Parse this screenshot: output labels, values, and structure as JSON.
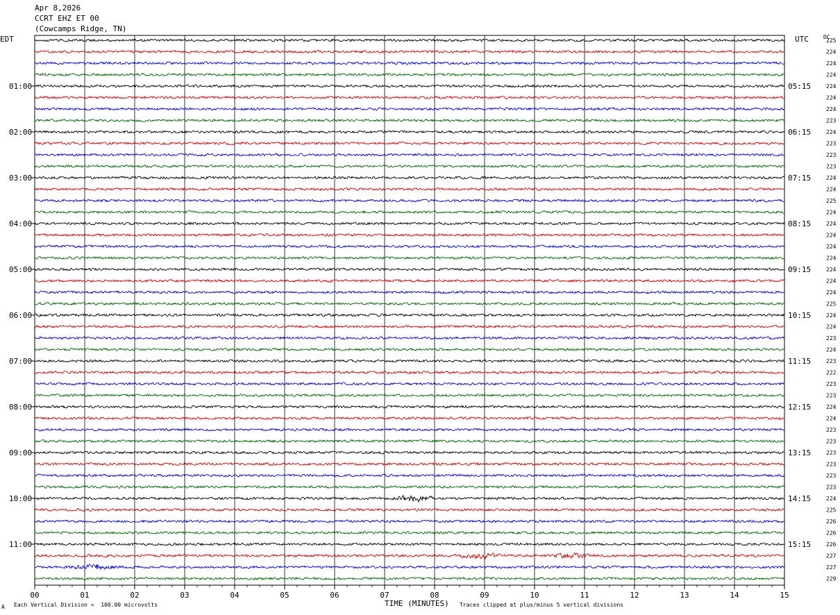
{
  "header": {
    "date": "Apr 8,2026",
    "station": "CCRT EHZ ET 00",
    "location": "(Cowcamps Ridge, TN)"
  },
  "labels": {
    "left_tz": "EDT",
    "right_tz": "UTC",
    "dc_label": "DC",
    "xlabel": "TIME (MINUTES)",
    "scale_note": "Each Vertical Division =  100.00 microvolts",
    "clip_note": "Traces clipped at plus/minus 5 vertical divisions",
    "corner_mark": "A"
  },
  "colors": {
    "trace_cycle": [
      "#000000",
      "#cc0000",
      "#0000cc",
      "#006600"
    ],
    "grid": "#000000"
  },
  "chart_data": {
    "type": "line",
    "title": "CCRT EHZ ET 00",
    "xlabel": "TIME (MINUTES)",
    "xlim": [
      0,
      15
    ],
    "x_ticks": [
      "00",
      "01",
      "02",
      "03",
      "04",
      "05",
      "06",
      "07",
      "08",
      "09",
      "10",
      "11",
      "12",
      "13",
      "14",
      "15"
    ],
    "rows_per_hour": 4,
    "row_count": 48,
    "left_hour_labels": [
      "01:00",
      "02:00",
      "03:00",
      "04:00",
      "05:00",
      "06:00",
      "07:00",
      "08:00",
      "09:00",
      "10:00",
      "11:00"
    ],
    "right_hour_labels": [
      "05:15",
      "06:15",
      "07:15",
      "08:15",
      "09:15",
      "10:15",
      "11:15",
      "12:15",
      "13:15",
      "14:15",
      "15:15"
    ],
    "dc_offsets": [
      225,
      224,
      224,
      224,
      224,
      224,
      224,
      223,
      224,
      223,
      223,
      223,
      224,
      224,
      225,
      224,
      224,
      224,
      224,
      224,
      224,
      224,
      224,
      225,
      224,
      224,
      223,
      224,
      223,
      222,
      223,
      223,
      224,
      224,
      223,
      223,
      223,
      223,
      223,
      223,
      224,
      225,
      226,
      226,
      226,
      227,
      227,
      229
    ],
    "events": [
      {
        "row": 40,
        "minute": 7.6,
        "strength": 2.2
      },
      {
        "row": 45,
        "minute": 8.9,
        "strength": 1.8
      },
      {
        "row": 45,
        "minute": 10.7,
        "strength": 1.6
      },
      {
        "row": 46,
        "minute": 1.2,
        "strength": 2.0
      }
    ]
  }
}
